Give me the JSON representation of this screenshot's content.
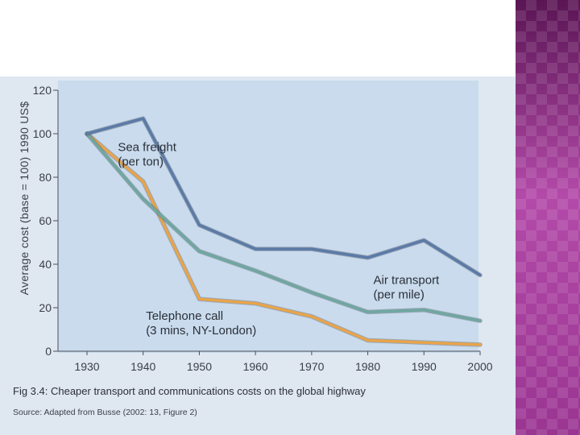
{
  "chart_data": {
    "type": "line",
    "ylabel": "Average cost (base = 100) 1990 US$",
    "x": [
      1930,
      1940,
      1950,
      1960,
      1970,
      1980,
      1990,
      2000
    ],
    "xlim": [
      1930,
      2000
    ],
    "ylim": [
      0,
      120
    ],
    "yticks": [
      0,
      20,
      40,
      60,
      80,
      100,
      120
    ],
    "grid": false,
    "series": [
      {
        "name": "Sea freight (per ton)",
        "values": [
          100,
          107,
          58,
          47,
          47,
          43,
          51,
          35
        ],
        "color": "#5b7aa6"
      },
      {
        "name": "Air transport (per mile)",
        "values": [
          100,
          70,
          46,
          37,
          27,
          18,
          19,
          14
        ],
        "color": "#6fa7a0"
      },
      {
        "name": "Telephone call (3 mins, NY-London)",
        "values": [
          100,
          78,
          24,
          22,
          16,
          5,
          4,
          3
        ],
        "color": "#e8a44a"
      }
    ],
    "annotations": [
      {
        "series": 0,
        "line1": "Sea freight",
        "line2": "(per ton)"
      },
      {
        "series": 1,
        "line1": "Air transport",
        "line2": "(per mile)"
      },
      {
        "series": 2,
        "line1": "Telephone call",
        "line2": "(3 mins, NY-London)"
      }
    ],
    "caption": "Fig 3.4: Cheaper transport and communications costs on the global highway",
    "source": "Source: Adapted from Busse (2002: 13, Figure 2)"
  }
}
